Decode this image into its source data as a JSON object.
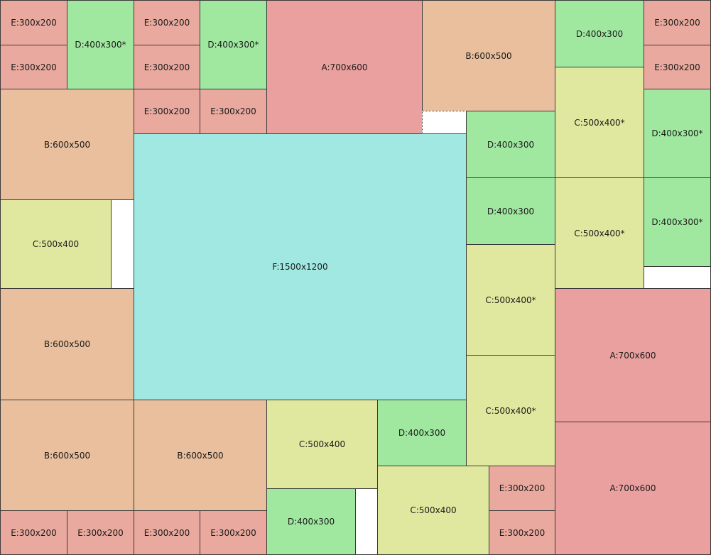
{
  "colors": {
    "A": "#e9a09e",
    "B": "#e9bf9d",
    "C": "#dfe89e",
    "D": "#a0e8a0",
    "E": "#e9a99e",
    "F": "#a0e8e1"
  },
  "rects": [
    {
      "type": "E",
      "label": "E:300x200"
    },
    {
      "type": "E",
      "label": "E:300x200"
    },
    {
      "type": "D",
      "label": "D:400x300*"
    },
    {
      "type": "E",
      "label": "E:300x200"
    },
    {
      "type": "E",
      "label": "E:300x200"
    },
    {
      "type": "D",
      "label": "D:400x300*"
    },
    {
      "type": "E",
      "label": "E:300x200"
    },
    {
      "type": "E",
      "label": "E:300x200"
    },
    {
      "type": "A",
      "label": "A:700x600"
    },
    {
      "type": "B",
      "label": "B:600x500"
    },
    {
      "type": "D",
      "label": "D:400x300"
    },
    {
      "type": "E",
      "label": "E:300x200"
    },
    {
      "type": "E",
      "label": "E:300x200"
    },
    {
      "type": "B",
      "label": "B:600x500"
    },
    {
      "type": "F",
      "label": "F:1500x1200"
    },
    {
      "type": "C",
      "label": "C:500x400*"
    },
    {
      "type": "D",
      "label": "D:400x300*"
    },
    {
      "type": "D",
      "label": "D:400x300"
    },
    {
      "type": "D",
      "label": "D:400x300"
    },
    {
      "type": "C",
      "label": "C:500x400*"
    },
    {
      "type": "D",
      "label": "D:400x300*"
    },
    {
      "type": "C",
      "label": "C:500x400"
    },
    {
      "type": "C",
      "label": "C:500x400*"
    },
    {
      "type": "B",
      "label": "B:600x500"
    },
    {
      "type": "A",
      "label": "A:700x600"
    },
    {
      "type": "C",
      "label": "C:500x400*"
    },
    {
      "type": "B",
      "label": "B:600x500"
    },
    {
      "type": "B",
      "label": "B:600x500"
    },
    {
      "type": "C",
      "label": "C:500x400"
    },
    {
      "type": "D",
      "label": "D:400x300"
    },
    {
      "type": "A",
      "label": "A:700x600"
    },
    {
      "type": "E",
      "label": "E:300x200"
    },
    {
      "type": "C",
      "label": "C:500x400"
    },
    {
      "type": "D",
      "label": "D:400x300"
    },
    {
      "type": "E",
      "label": "E:300x200"
    },
    {
      "type": "E",
      "label": "E:300x200"
    },
    {
      "type": "E",
      "label": "E:300x200"
    },
    {
      "type": "E",
      "label": "E:300x200"
    },
    {
      "type": "E",
      "label": "E:300x200"
    }
  ]
}
